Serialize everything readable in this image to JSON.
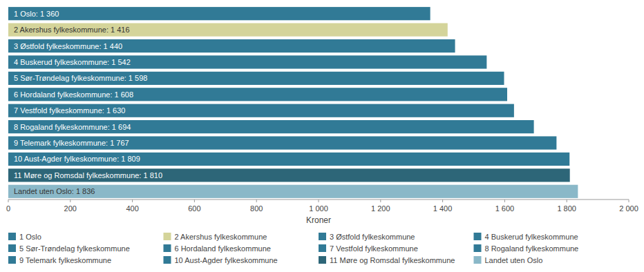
{
  "chart_data": {
    "type": "bar",
    "orientation": "horizontal",
    "categories": [
      "1 Oslo",
      "2 Akershus fylkeskommune",
      "3 Østfold fylkeskommune",
      "4 Buskerud fylkeskommune",
      "5 Sør-Trøndelag fylkeskommune",
      "6 Hordaland fylkeskommune",
      "7 Vestfold fylkeskommune",
      "8 Rogaland fylkeskommune",
      "9 Telemark fylkeskommune",
      "10 Aust-Agder fylkeskommune",
      "11 Møre og Romsdal fylkeskommune",
      "Landet uten Oslo"
    ],
    "values": [
      1360,
      1416,
      1440,
      1542,
      1598,
      1608,
      1630,
      1694,
      1767,
      1809,
      1810,
      1836
    ],
    "value_labels": [
      "1 Oslo: 1 360",
      "2 Akershus fylkeskommune: 1 416",
      "3 Østfold fylkeskommune: 1 440",
      "4 Buskerud fylkeskommune: 1 542",
      "5 Sør-Trøndelag fylkeskommune: 1 598",
      "6 Hordaland fylkeskommune: 1 608",
      "7 Vestfold fylkeskommune: 1 630",
      "8 Rogaland fylkeskommune: 1 694",
      "9 Telemark fylkeskommune: 1 767",
      "10 Aust-Agder fylkeskommune: 1 809",
      "11 Møre og Romsdal fylkeskommune: 1 810",
      "Landet uten Oslo: 1 836"
    ],
    "data_labels": true,
    "colors": [
      "#317a96",
      "#d4d49a",
      "#317a96",
      "#317a96",
      "#317a96",
      "#317a96",
      "#317a96",
      "#317a96",
      "#317a96",
      "#317a96",
      "#2d6678",
      "#8ab8c8"
    ],
    "x_label": "Kroner",
    "xlim": [
      0,
      2000
    ],
    "xticks": [
      0,
      200,
      400,
      600,
      800,
      {
        "value": 1000,
        "label": "1 000"
      },
      {
        "value": 1200,
        "label": "1 200"
      },
      {
        "value": 1400,
        "label": "1 400"
      },
      {
        "value": 1600,
        "label": "1 600"
      },
      {
        "value": 1800,
        "label": "1 800"
      },
      {
        "value": 2000,
        "label": "2 000"
      }
    ],
    "tick_labels": "x",
    "grid": false,
    "legend": "bottom"
  }
}
